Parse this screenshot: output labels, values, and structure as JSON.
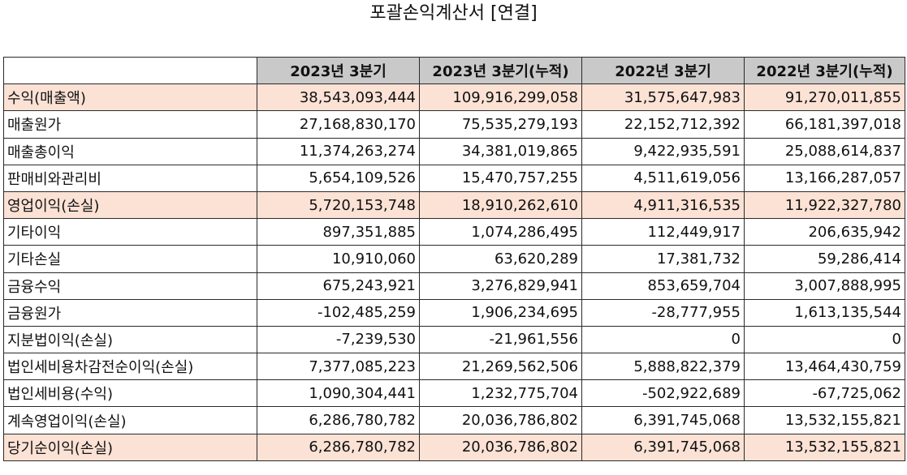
{
  "title": "포괄손익계산서 [연결]",
  "columns": [
    "",
    "2023년 3분기",
    "2023년 3분기(누적)",
    "2022년 3분기",
    "2022년 3분기(누적)"
  ],
  "highlight_color": "#fbe2d5",
  "header_color": "#c9c9c9",
  "rows": [
    {
      "label": "수익(매출액)",
      "highlight": true,
      "values": [
        "38,543,093,444",
        "109,916,299,058",
        "31,575,647,983",
        "91,270,011,855"
      ]
    },
    {
      "label": "매출원가",
      "highlight": false,
      "values": [
        "27,168,830,170",
        "75,535,279,193",
        "22,152,712,392",
        "66,181,397,018"
      ]
    },
    {
      "label": "매출총이익",
      "highlight": false,
      "values": [
        "11,374,263,274",
        "34,381,019,865",
        "9,422,935,591",
        "25,088,614,837"
      ]
    },
    {
      "label": "판매비와관리비",
      "highlight": false,
      "values": [
        "5,654,109,526",
        "15,470,757,255",
        "4,511,619,056",
        "13,166,287,057"
      ]
    },
    {
      "label": "영업이익(손실)",
      "highlight": true,
      "values": [
        "5,720,153,748",
        "18,910,262,610",
        "4,911,316,535",
        "11,922,327,780"
      ]
    },
    {
      "label": "기타이익",
      "highlight": false,
      "values": [
        "897,351,885",
        "1,074,286,495",
        "112,449,917",
        "206,635,942"
      ]
    },
    {
      "label": "기타손실",
      "highlight": false,
      "values": [
        "10,910,060",
        "63,620,289",
        "17,381,732",
        "59,286,414"
      ]
    },
    {
      "label": "금융수익",
      "highlight": false,
      "values": [
        "675,243,921",
        "3,276,829,941",
        "853,659,704",
        "3,007,888,995"
      ]
    },
    {
      "label": "금융원가",
      "highlight": false,
      "values": [
        "-102,485,259",
        "1,906,234,695",
        "-28,777,955",
        "1,613,135,544"
      ]
    },
    {
      "label": "지분법이익(손실)",
      "highlight": false,
      "values": [
        "-7,239,530",
        "-21,961,556",
        "0",
        "0"
      ]
    },
    {
      "label": "법인세비용차감전순이익(손실)",
      "highlight": false,
      "values": [
        "7,377,085,223",
        "21,269,562,506",
        "5,888,822,379",
        "13,464,430,759"
      ]
    },
    {
      "label": "법인세비용(수익)",
      "highlight": false,
      "values": [
        "1,090,304,441",
        "1,232,775,704",
        "-502,922,689",
        "-67,725,062"
      ]
    },
    {
      "label": "계속영업이익(손실)",
      "highlight": false,
      "values": [
        "6,286,780,782",
        "20,036,786,802",
        "6,391,745,068",
        "13,532,155,821"
      ]
    },
    {
      "label": "당기순이익(손실)",
      "highlight": true,
      "values": [
        "6,286,780,782",
        "20,036,786,802",
        "6,391,745,068",
        "13,532,155,821"
      ]
    }
  ]
}
